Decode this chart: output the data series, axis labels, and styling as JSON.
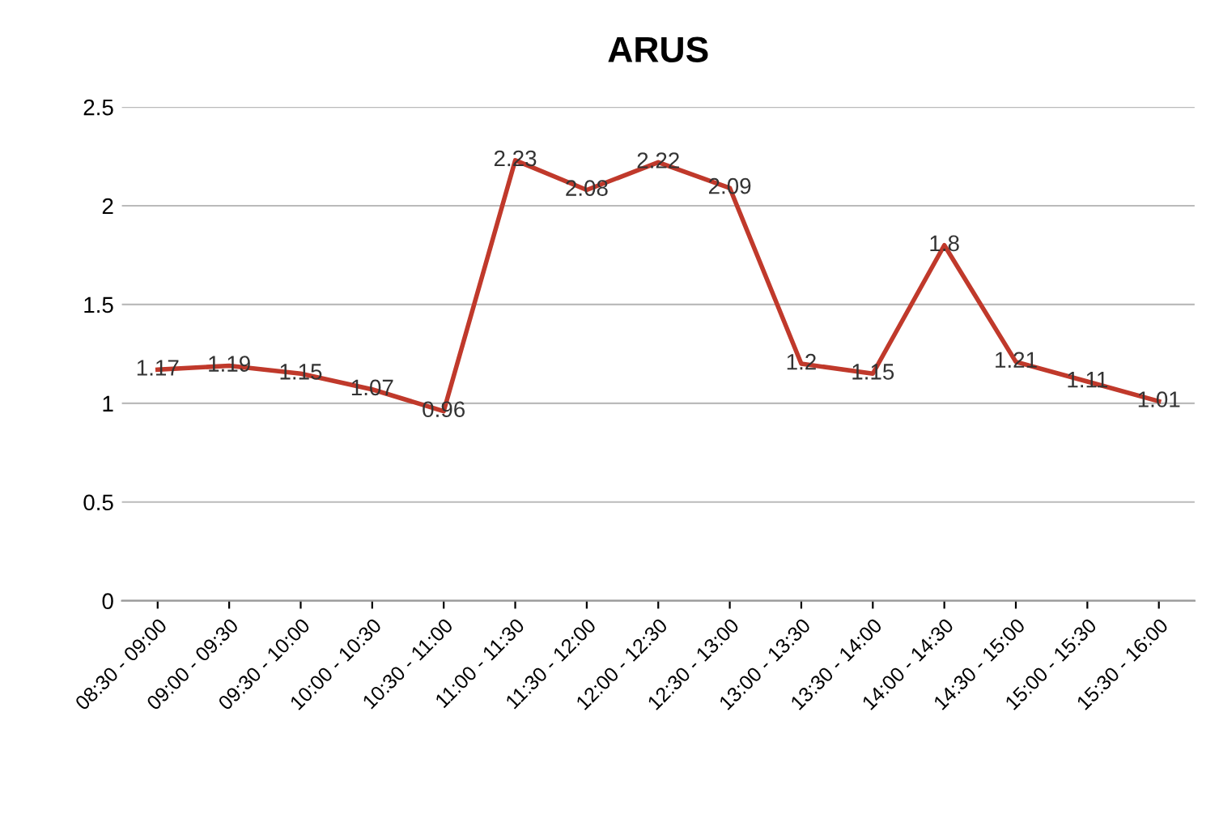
{
  "chart_data": {
    "type": "line",
    "title": "ARUS",
    "categories": [
      "08:30 - 09:00",
      "09:00 - 09:30",
      "09:30 - 10:00",
      "10:00 - 10:30",
      "10:30 - 11:00",
      "11:00 - 11:30",
      "11:30 - 12:00",
      "12:00 - 12:30",
      "12:30 - 13:00",
      "13:00 - 13:30",
      "13:30 - 14:00",
      "14:00 - 14:30",
      "14:30 - 15:00",
      "15:00 - 15:30",
      "15:30 - 16:00"
    ],
    "series": [
      {
        "color": "#c0392b",
        "values": [
          1.17,
          1.19,
          1.15,
          1.07,
          0.96,
          2.23,
          2.08,
          2.22,
          2.09,
          1.2,
          1.15,
          1.8,
          1.21,
          1.11,
          1.01
        ]
      }
    ],
    "ylim": [
      0,
      2.5
    ],
    "yticks": [
      0,
      0.5,
      1,
      1.5,
      2,
      2.5
    ],
    "grid": "y",
    "data_labels": true,
    "marker": "none",
    "line_style": "solid"
  }
}
